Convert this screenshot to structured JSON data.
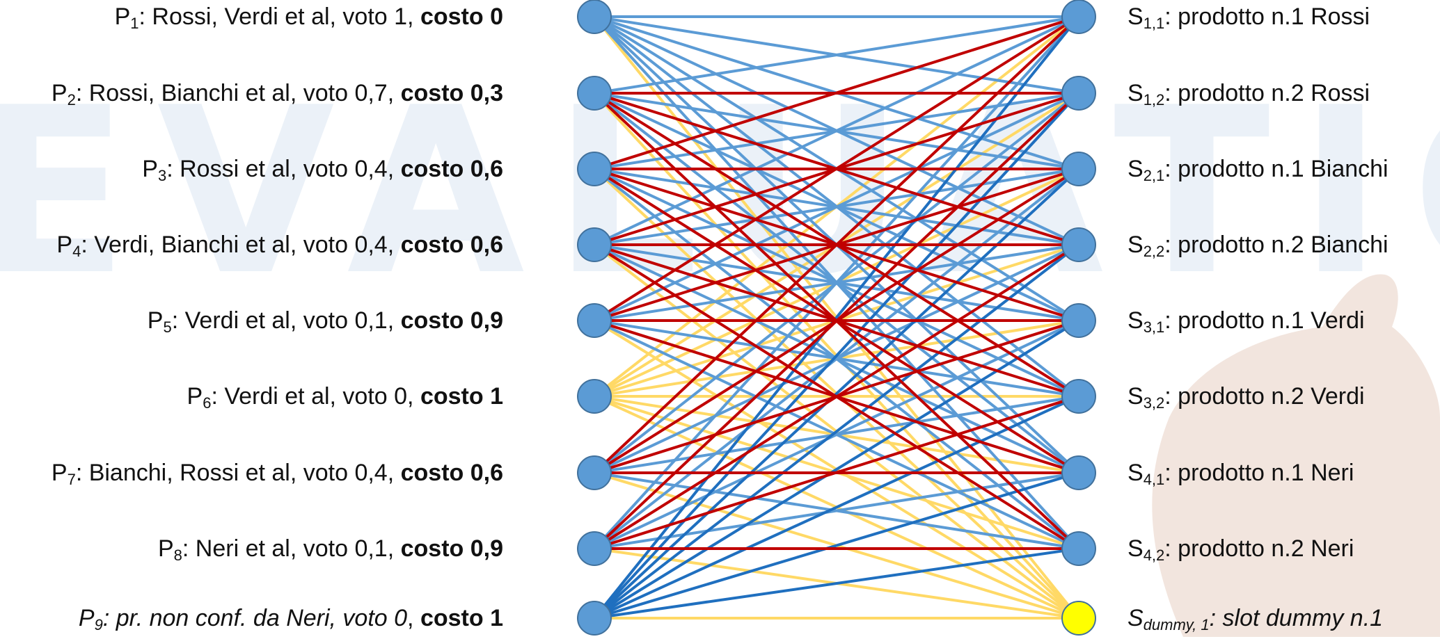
{
  "left_nodes": [
    {
      "name": "P",
      "sub": "1",
      "text": ": Rossi, Verdi et al, voto 1, ",
      "cost": "costo 0"
    },
    {
      "name": "P",
      "sub": "2",
      "text": ": Rossi, Bianchi et al, voto 0,7, ",
      "cost": "costo 0,3"
    },
    {
      "name": "P",
      "sub": "3",
      "text": ": Rossi et al, voto 0,4, ",
      "cost": "costo 0,6"
    },
    {
      "name": "P",
      "sub": "4",
      "text": ": Verdi, Bianchi et al, voto 0,4, ",
      "cost": "costo 0,6"
    },
    {
      "name": "P",
      "sub": "5",
      "text": ": Verdi et al, voto 0,1, ",
      "cost": "costo 0,9"
    },
    {
      "name": "P",
      "sub": "6",
      "text": ": Verdi et al, voto 0, ",
      "cost": "costo 1"
    },
    {
      "name": "P",
      "sub": "7",
      "text": ": Bianchi, Rossi et al, voto 0,4, ",
      "cost": "costo 0,6"
    },
    {
      "name": "P",
      "sub": "8",
      "text": ": Neri et al, voto 0,1, ",
      "cost": "costo 0,9"
    },
    {
      "name": "P",
      "sub": "9",
      "text": ": pr. non conf. da Neri, voto 0",
      "cost": "costo 1",
      "italic": true
    }
  ],
  "right_nodes": [
    {
      "name": "S",
      "sub": "1,1",
      "text": ": prodotto n.1 Rossi"
    },
    {
      "name": "S",
      "sub": "1,2",
      "text": ": prodotto n.2 Rossi"
    },
    {
      "name": "S",
      "sub": "2,1",
      "text": ": prodotto n.1 Bianchi"
    },
    {
      "name": "S",
      "sub": "2,2",
      "text": ": prodotto n.2 Bianchi"
    },
    {
      "name": "S",
      "sub": "3,1",
      "text": ": prodotto n.1 Verdi"
    },
    {
      "name": "S",
      "sub": "3,2",
      "text": ": prodotto n.2 Verdi"
    },
    {
      "name": "S",
      "sub": "4,1",
      "text": ": prodotto n.1 Neri"
    },
    {
      "name": "S",
      "sub": "4,2",
      "text": ": prodotto n.2 Neri"
    },
    {
      "name": "S",
      "sub": "dummy, 1",
      "text": ": slot dummy n.1",
      "italic": true,
      "dummy": true
    }
  ],
  "watermark_text": "EVALUATION",
  "colors": {
    "node_fill": "#5b9bd5",
    "node_stroke": "#41719c",
    "dummy_fill": "#ffff00",
    "edge_light_blue": "#5b9bd5",
    "edge_dark_blue": "#1f6fbf",
    "edge_red": "#c00000",
    "edge_yellow": "#ffd966"
  },
  "edges_note_colors": {
    "cost0": "edge_light_blue",
    "cost_mid": "edge_red",
    "cost1": "edge_yellow"
  }
}
